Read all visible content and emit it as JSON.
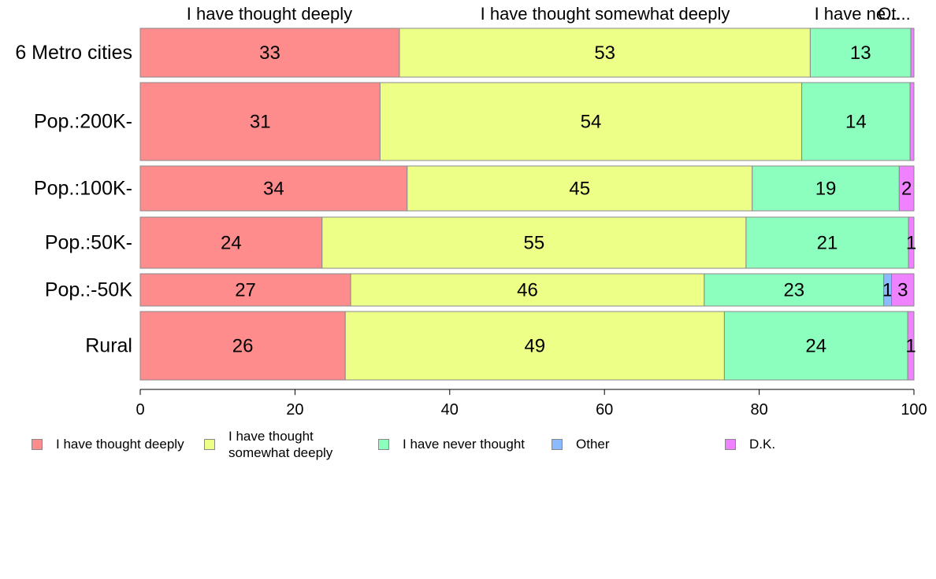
{
  "chart_data": {
    "type": "bar",
    "orientation": "horizontal",
    "stacked": true,
    "categories": [
      "6 Metro cities",
      "Pop.:200K-",
      "Pop.:100K-",
      "Pop.:50K-",
      "Pop.:-50K",
      "Rural"
    ],
    "series": [
      {
        "name": "I have thought deeply",
        "color": "#ff8c8c",
        "values": [
          33.5,
          31,
          34.5,
          23.5,
          27.2,
          26.5
        ],
        "labels": [
          "33",
          "31",
          "34",
          "24",
          "27",
          "26"
        ]
      },
      {
        "name": "I have thought somewhat deeply",
        "color": "#eeff88",
        "values": [
          53.1,
          54.5,
          44.6,
          54.8,
          45.7,
          49
        ],
        "labels": [
          "53",
          "54",
          "45",
          "55",
          "46",
          "49"
        ]
      },
      {
        "name": "I have never thought",
        "color": "#8cffbe",
        "values": [
          13,
          14,
          19,
          21,
          23.2,
          23.7
        ],
        "labels": [
          "13",
          "14",
          "19",
          "21",
          "23",
          "24"
        ]
      },
      {
        "name": "Other",
        "color": "#8cbaff",
        "values": [
          0,
          0,
          0,
          0,
          1,
          0
        ],
        "labels": [
          "",
          "",
          "",
          "",
          "1",
          ""
        ]
      },
      {
        "name": "D.K.",
        "color": "#ee82ff",
        "values": [
          0.4,
          0.5,
          1.9,
          0.7,
          2.9,
          0.8
        ],
        "labels": [
          "",
          "",
          "2",
          "1",
          "3",
          "1"
        ]
      }
    ],
    "top_labels": [
      "I have thought deeply",
      "I have thought somewhat deeply",
      "I have ne...",
      "Ot..."
    ],
    "xlim": [
      0,
      100
    ],
    "xticks": [
      "0",
      "20",
      "40",
      "60",
      "80",
      "100"
    ],
    "xlabel": "",
    "ylabel": "",
    "grid": false,
    "legend_position": "bottom"
  },
  "legend": {
    "items": [
      {
        "label": "I have thought deeply",
        "color": "#ff8c8c"
      },
      {
        "label": "I have thought\nsomewhat deeply",
        "color": "#eeff88"
      },
      {
        "label": "I have never thought",
        "color": "#8cffbe"
      },
      {
        "label": "Other",
        "color": "#8cbaff"
      },
      {
        "label": "D.K.",
        "color": "#ee82ff"
      }
    ]
  }
}
